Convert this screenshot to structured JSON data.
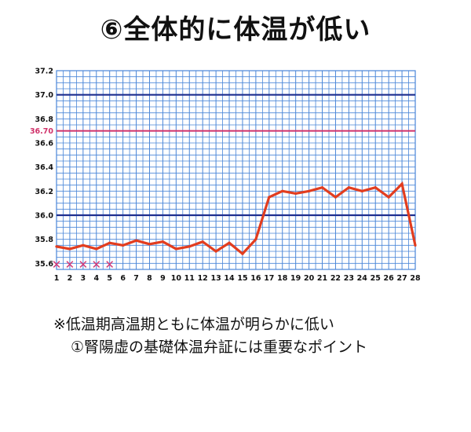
{
  "title": "⑥全体的に体温が低い",
  "notes": [
    "※低温期高温期ともに体温が明らかに低い",
    "①腎陽虚の基礎体温弁証には重要なポイント"
  ],
  "colors": {
    "grid": "#4a86d8",
    "major_line": "#1e2f8f",
    "reference_line": "#d0326a",
    "series": "#e23d1f",
    "marker": "#d23a78"
  },
  "chart_data": {
    "type": "line",
    "title": "",
    "xlabel": "",
    "ylabel": "",
    "x": [
      1,
      2,
      3,
      4,
      5,
      6,
      7,
      8,
      9,
      10,
      11,
      12,
      13,
      14,
      15,
      16,
      17,
      18,
      19,
      20,
      21,
      22,
      23,
      24,
      25,
      26,
      27,
      28
    ],
    "x_tick_labels": [
      "1",
      "2",
      "3",
      "4",
      "5",
      "6",
      "7",
      "8",
      "9",
      "10",
      "11",
      "12",
      "13",
      "14",
      "15",
      "16",
      "17",
      "18",
      "19",
      "20",
      "21",
      "22",
      "23",
      "24",
      "25",
      "26",
      "27",
      "28"
    ],
    "series": [
      {
        "values": [
          35.74,
          35.72,
          35.75,
          35.72,
          35.77,
          35.75,
          35.79,
          35.76,
          35.78,
          35.72,
          35.74,
          35.78,
          35.7,
          35.77,
          35.68,
          35.8,
          36.15,
          36.2,
          36.18,
          36.2,
          36.23,
          36.15,
          36.23,
          36.2,
          36.23,
          36.15,
          36.26,
          35.75
        ]
      }
    ],
    "xlim": [
      1,
      28
    ],
    "ylim": [
      35.55,
      37.2
    ],
    "y_tick_values": [
      35.6,
      35.8,
      36.0,
      36.2,
      36.4,
      36.6,
      36.7,
      36.8,
      37.0,
      37.2
    ],
    "y_tick_labels": [
      "35.6",
      "35.8",
      "36.0",
      "36.2",
      "36.4",
      "36.6",
      "36.70",
      "36.8",
      "37.0",
      "37.2"
    ],
    "highlight_tick": "36.70",
    "major_lines": [
      36.0,
      37.0
    ],
    "reference_line": 36.7,
    "grid": true,
    "x_markers": {
      "symbol": "✕",
      "days": [
        1,
        2,
        3,
        4,
        5
      ]
    }
  }
}
